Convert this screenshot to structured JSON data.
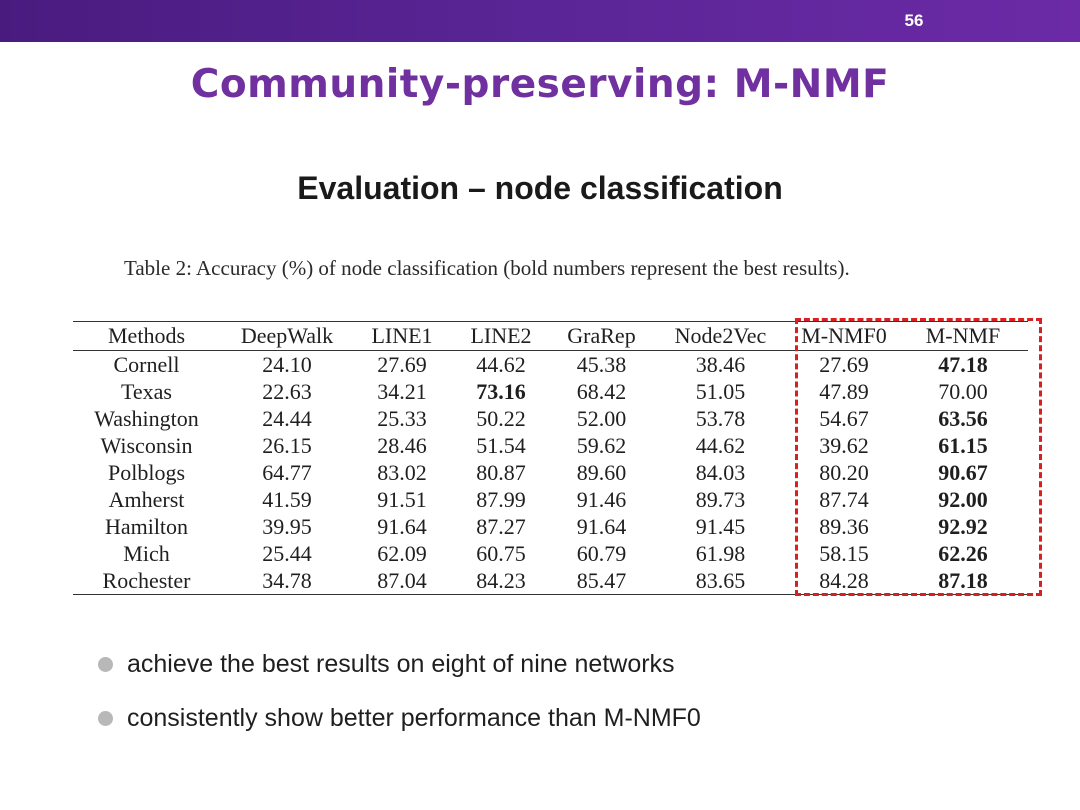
{
  "slide": {
    "number": "56",
    "title": "Community-preserving: M-NMF",
    "subtitle": "Evaluation – node classification",
    "accent_color": "#7030a0",
    "bar_color": "#5a2596",
    "highlight_color": "#d92020"
  },
  "table": {
    "caption": "Table 2: Accuracy (%) of node classification (bold numbers represent the best results).",
    "headers": [
      "Methods",
      "DeepWalk",
      "LINE1",
      "LINE2",
      "GraRep",
      "Node2Vec",
      "M-NMF0",
      "M-NMF"
    ],
    "rows": [
      {
        "cells": [
          "Cornell",
          "24.10",
          "27.69",
          "44.62",
          "45.38",
          "38.46",
          "27.69",
          "47.18"
        ],
        "bold": [
          7
        ]
      },
      {
        "cells": [
          "Texas",
          "22.63",
          "34.21",
          "73.16",
          "68.42",
          "51.05",
          "47.89",
          "70.00"
        ],
        "bold": [
          3
        ]
      },
      {
        "cells": [
          "Washington",
          "24.44",
          "25.33",
          "50.22",
          "52.00",
          "53.78",
          "54.67",
          "63.56"
        ],
        "bold": [
          7
        ]
      },
      {
        "cells": [
          "Wisconsin",
          "26.15",
          "28.46",
          "51.54",
          "59.62",
          "44.62",
          "39.62",
          "61.15"
        ],
        "bold": [
          7
        ]
      },
      {
        "cells": [
          "Polblogs",
          "64.77",
          "83.02",
          "80.87",
          "89.60",
          "84.03",
          "80.20",
          "90.67"
        ],
        "bold": [
          7
        ]
      },
      {
        "cells": [
          "Amherst",
          "41.59",
          "91.51",
          "87.99",
          "91.46",
          "89.73",
          "87.74",
          "92.00"
        ],
        "bold": [
          7
        ]
      },
      {
        "cells": [
          "Hamilton",
          "39.95",
          "91.64",
          "87.27",
          "91.64",
          "91.45",
          "89.36",
          "92.92"
        ],
        "bold": [
          7
        ]
      },
      {
        "cells": [
          "Mich",
          "25.44",
          "62.09",
          "60.75",
          "60.79",
          "61.98",
          "58.15",
          "62.26"
        ],
        "bold": [
          7
        ]
      },
      {
        "cells": [
          "Rochester",
          "34.78",
          "87.04",
          "84.23",
          "85.47",
          "83.65",
          "84.28",
          "87.18"
        ],
        "bold": [
          7
        ]
      }
    ]
  },
  "bullets": [
    "achieve the best results on eight of nine networks",
    "consistently show better performance than M-NMF0"
  ]
}
